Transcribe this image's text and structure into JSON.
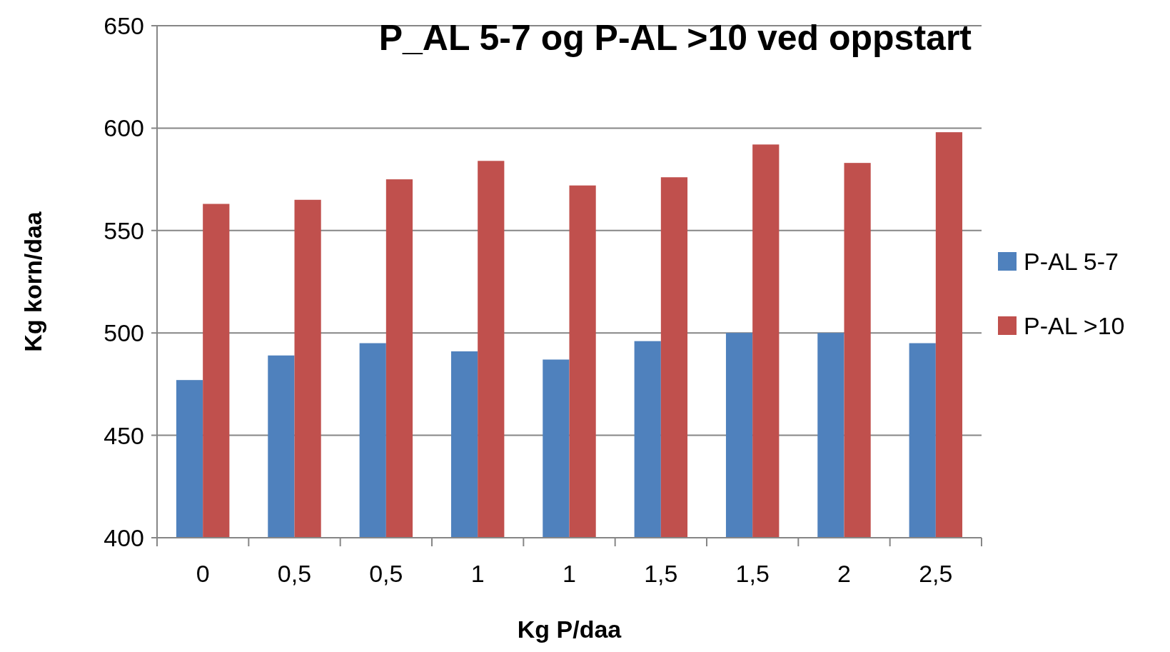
{
  "chart_data": {
    "type": "bar",
    "title": "P_AL 5-7 og P-AL >10 ved oppstart",
    "xlabel": "Kg P/daa",
    "ylabel": "Kg korn/daa",
    "categories": [
      "0",
      "0,5",
      "0,5",
      "1",
      "1",
      "1,5",
      "1,5",
      "2",
      "2,5"
    ],
    "series": [
      {
        "name": "P-AL 5-7",
        "color": "#4f81bd",
        "values": [
          477,
          489,
          495,
          491,
          487,
          496,
          500,
          500,
          495
        ]
      },
      {
        "name": "P-AL >10",
        "color": "#c0504d",
        "values": [
          563,
          565,
          575,
          584,
          572,
          576,
          592,
          583,
          598
        ]
      }
    ],
    "ylim": [
      400,
      650
    ],
    "yticks": [
      400,
      450,
      500,
      550,
      600,
      650
    ],
    "grid": "y",
    "legend": "right"
  }
}
